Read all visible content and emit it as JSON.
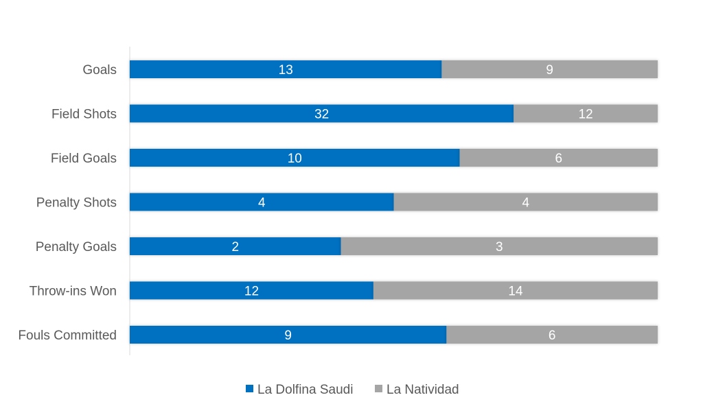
{
  "chart_data": {
    "type": "bar",
    "orientation": "horizontal",
    "stacking": "percent",
    "categories": [
      "Goals",
      "Field Shots",
      "Field Goals",
      "Penalty Shots",
      "Penalty Goals",
      "Throw-ins Won",
      "Fouls Committed"
    ],
    "series": [
      {
        "name": "La Dolfina Saudi",
        "color": "#0070c0",
        "values": [
          13,
          32,
          10,
          4,
          2,
          12,
          9
        ]
      },
      {
        "name": "La Natividad",
        "color": "#a5a5a5",
        "values": [
          9,
          12,
          6,
          4,
          3,
          14,
          6
        ]
      }
    ],
    "data_labels": true,
    "grid": false,
    "legend": "bottom",
    "title": "",
    "xlabel": "",
    "ylabel": ""
  }
}
